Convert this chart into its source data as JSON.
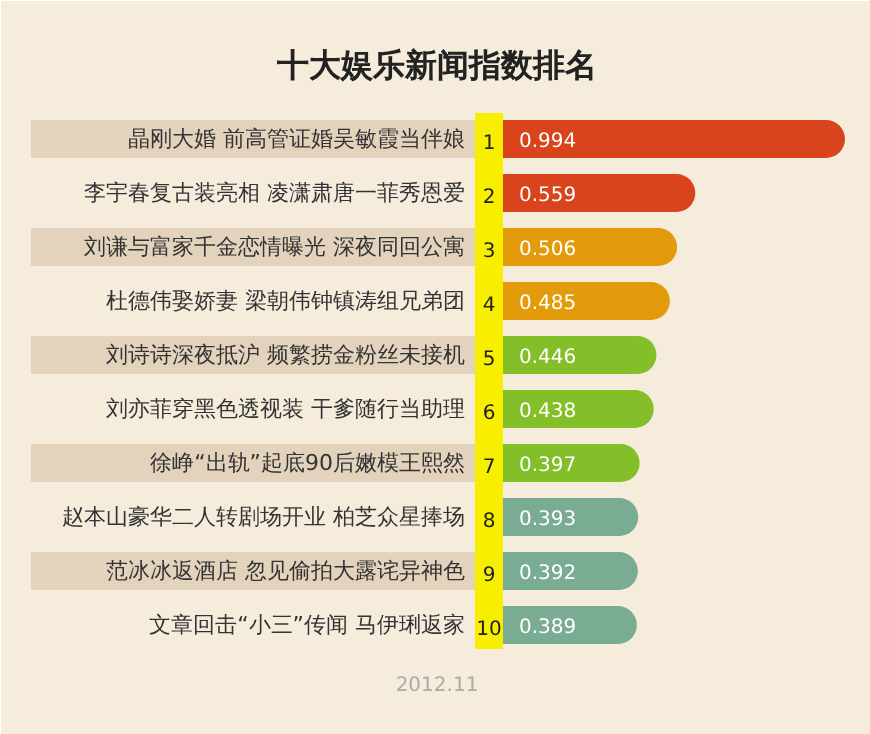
{
  "chart_data": {
    "type": "bar",
    "orientation": "horizontal",
    "title": "十大娱乐新闻指数排名",
    "categories": [
      "晶刚大婚 前高管证婚吴敏霞当伴娘",
      "李宇春复古装亮相 凌潇肃唐一菲秀恩爱",
      "刘谦与富家千金恋情曝光 深夜同回公寓",
      "杜德伟娶娇妻 梁朝伟钟镇涛组兄弟团",
      "刘诗诗深夜抵沪 频繁捞金粉丝未接机",
      "刘亦菲穿黑色透视装 干爹随行当助理",
      "徐峥“出轨”起底90后嫩模王熙然",
      "赵本山豪华二人转剧场开业 柏芝众星捧场",
      "范冰冰返酒店 忽见偷拍大露诧异神色",
      "文章回击“小三”传闻 马伊琍返家"
    ],
    "values": [
      0.994,
      0.559,
      0.506,
      0.485,
      0.446,
      0.438,
      0.397,
      0.393,
      0.392,
      0.389
    ],
    "colors": [
      "#d9441c",
      "#d9441c",
      "#e39b0c",
      "#e39b0c",
      "#84bf2a",
      "#84bf2a",
      "#84bf2a",
      "#7aab93",
      "#7aab93",
      "#7aab93"
    ],
    "data_labels": true,
    "annotations": [
      "1",
      "2",
      "3",
      "4",
      "5",
      "6",
      "7",
      "8",
      "9",
      "10",
      "2012.11"
    ]
  }
}
